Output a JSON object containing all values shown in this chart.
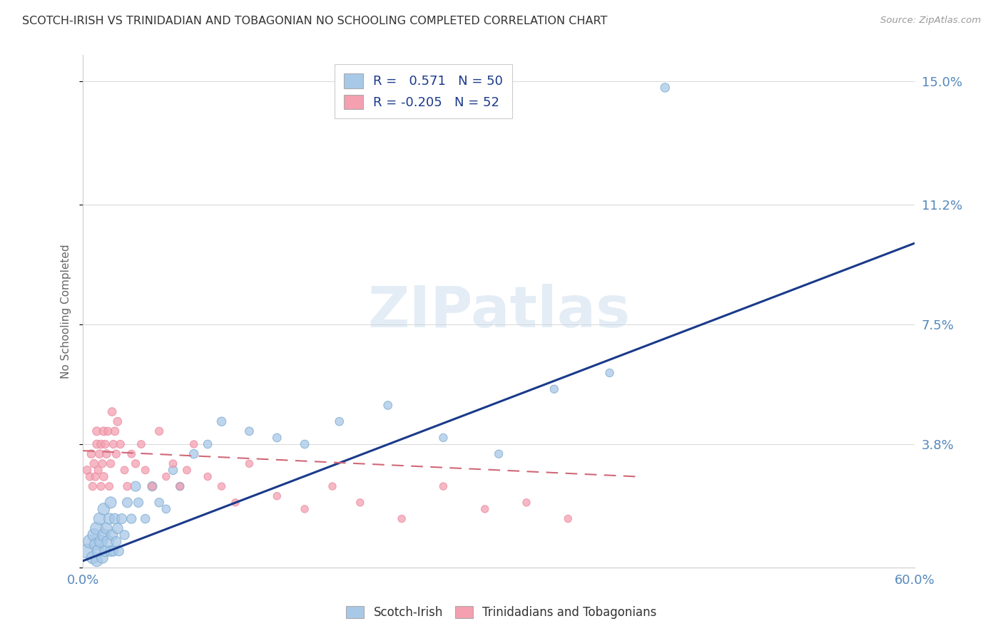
{
  "title": "SCOTCH-IRISH VS TRINIDADIAN AND TOBAGONIAN NO SCHOOLING COMPLETED CORRELATION CHART",
  "source": "Source: ZipAtlas.com",
  "ylabel": "No Schooling Completed",
  "xlim": [
    0.0,
    0.6
  ],
  "ylim": [
    0.0,
    0.158
  ],
  "yticks": [
    0.0,
    0.038,
    0.075,
    0.112,
    0.15
  ],
  "ytick_labels": [
    "",
    "3.8%",
    "7.5%",
    "11.2%",
    "15.0%"
  ],
  "xticks": [
    0.0,
    0.1,
    0.2,
    0.3,
    0.4,
    0.5,
    0.6
  ],
  "xtick_labels": [
    "0.0%",
    "",
    "",
    "",
    "",
    "",
    "60.0%"
  ],
  "watermark": "ZIPatlas",
  "legend_R1": "0.571",
  "legend_N1": "50",
  "legend_R2": "-0.205",
  "legend_N2": "52",
  "legend_label1": "Scotch-Irish",
  "legend_label2": "Trinidadians and Tobagonians",
  "blue_color": "#a8c8e8",
  "pink_color": "#f4a0b0",
  "blue_line_color": "#1a3a8a",
  "pink_line_color": "#d06878",
  "axis_label_color": "#5588bb",
  "title_color": "#333333",
  "scotch_irish_x": [
    0.003,
    0.005,
    0.007,
    0.008,
    0.009,
    0.01,
    0.01,
    0.011,
    0.012,
    0.013,
    0.014,
    0.015,
    0.015,
    0.016,
    0.017,
    0.018,
    0.019,
    0.02,
    0.02,
    0.021,
    0.022,
    0.023,
    0.024,
    0.025,
    0.026,
    0.028,
    0.03,
    0.032,
    0.035,
    0.038,
    0.04,
    0.045,
    0.05,
    0.055,
    0.06,
    0.065,
    0.07,
    0.08,
    0.09,
    0.1,
    0.12,
    0.14,
    0.16,
    0.185,
    0.22,
    0.26,
    0.3,
    0.34,
    0.38,
    0.42
  ],
  "scotch_irish_y": [
    0.005,
    0.008,
    0.003,
    0.01,
    0.007,
    0.012,
    0.002,
    0.005,
    0.015,
    0.008,
    0.003,
    0.01,
    0.018,
    0.005,
    0.012,
    0.008,
    0.015,
    0.005,
    0.02,
    0.01,
    0.005,
    0.015,
    0.008,
    0.012,
    0.005,
    0.015,
    0.01,
    0.02,
    0.015,
    0.025,
    0.02,
    0.015,
    0.025,
    0.02,
    0.018,
    0.03,
    0.025,
    0.035,
    0.038,
    0.045,
    0.042,
    0.04,
    0.038,
    0.045,
    0.05,
    0.04,
    0.035,
    0.055,
    0.06,
    0.148
  ],
  "scotch_irish_size": [
    200,
    180,
    150,
    160,
    140,
    170,
    130,
    150,
    140,
    160,
    130,
    150,
    140,
    120,
    130,
    140,
    120,
    110,
    130,
    120,
    100,
    110,
    100,
    110,
    90,
    100,
    90,
    100,
    90,
    100,
    90,
    80,
    90,
    80,
    70,
    80,
    70,
    80,
    70,
    80,
    70,
    70,
    70,
    70,
    70,
    65,
    65,
    65,
    65,
    80
  ],
  "trinidadian_x": [
    0.003,
    0.005,
    0.006,
    0.007,
    0.008,
    0.009,
    0.01,
    0.01,
    0.011,
    0.012,
    0.013,
    0.013,
    0.014,
    0.015,
    0.015,
    0.016,
    0.017,
    0.018,
    0.019,
    0.02,
    0.021,
    0.022,
    0.023,
    0.024,
    0.025,
    0.027,
    0.03,
    0.032,
    0.035,
    0.038,
    0.042,
    0.045,
    0.05,
    0.055,
    0.06,
    0.065,
    0.07,
    0.075,
    0.08,
    0.09,
    0.1,
    0.11,
    0.12,
    0.14,
    0.16,
    0.18,
    0.2,
    0.23,
    0.26,
    0.29,
    0.32,
    0.35
  ],
  "trinidadian_y": [
    0.03,
    0.028,
    0.035,
    0.025,
    0.032,
    0.028,
    0.038,
    0.042,
    0.03,
    0.035,
    0.025,
    0.038,
    0.032,
    0.028,
    0.042,
    0.038,
    0.035,
    0.042,
    0.025,
    0.032,
    0.048,
    0.038,
    0.042,
    0.035,
    0.045,
    0.038,
    0.03,
    0.025,
    0.035,
    0.032,
    0.038,
    0.03,
    0.025,
    0.042,
    0.028,
    0.032,
    0.025,
    0.03,
    0.038,
    0.028,
    0.025,
    0.02,
    0.032,
    0.022,
    0.018,
    0.025,
    0.02,
    0.015,
    0.025,
    0.018,
    0.02,
    0.015
  ],
  "trinidadian_size": [
    70,
    65,
    70,
    65,
    70,
    65,
    70,
    75,
    65,
    70,
    65,
    70,
    65,
    70,
    75,
    65,
    70,
    65,
    60,
    65,
    70,
    65,
    70,
    65,
    70,
    65,
    60,
    65,
    60,
    65,
    60,
    60,
    60,
    65,
    55,
    60,
    55,
    60,
    55,
    55,
    55,
    55,
    55,
    55,
    55,
    55,
    55,
    55,
    55,
    55,
    55,
    55
  ],
  "blue_line_start_x": 0.0,
  "blue_line_start_y": 0.002,
  "blue_line_end_x": 0.6,
  "blue_line_end_y": 0.1,
  "pink_line_start_x": 0.0,
  "pink_line_start_y": 0.036,
  "pink_line_end_x": 0.4,
  "pink_line_end_y": 0.028
}
